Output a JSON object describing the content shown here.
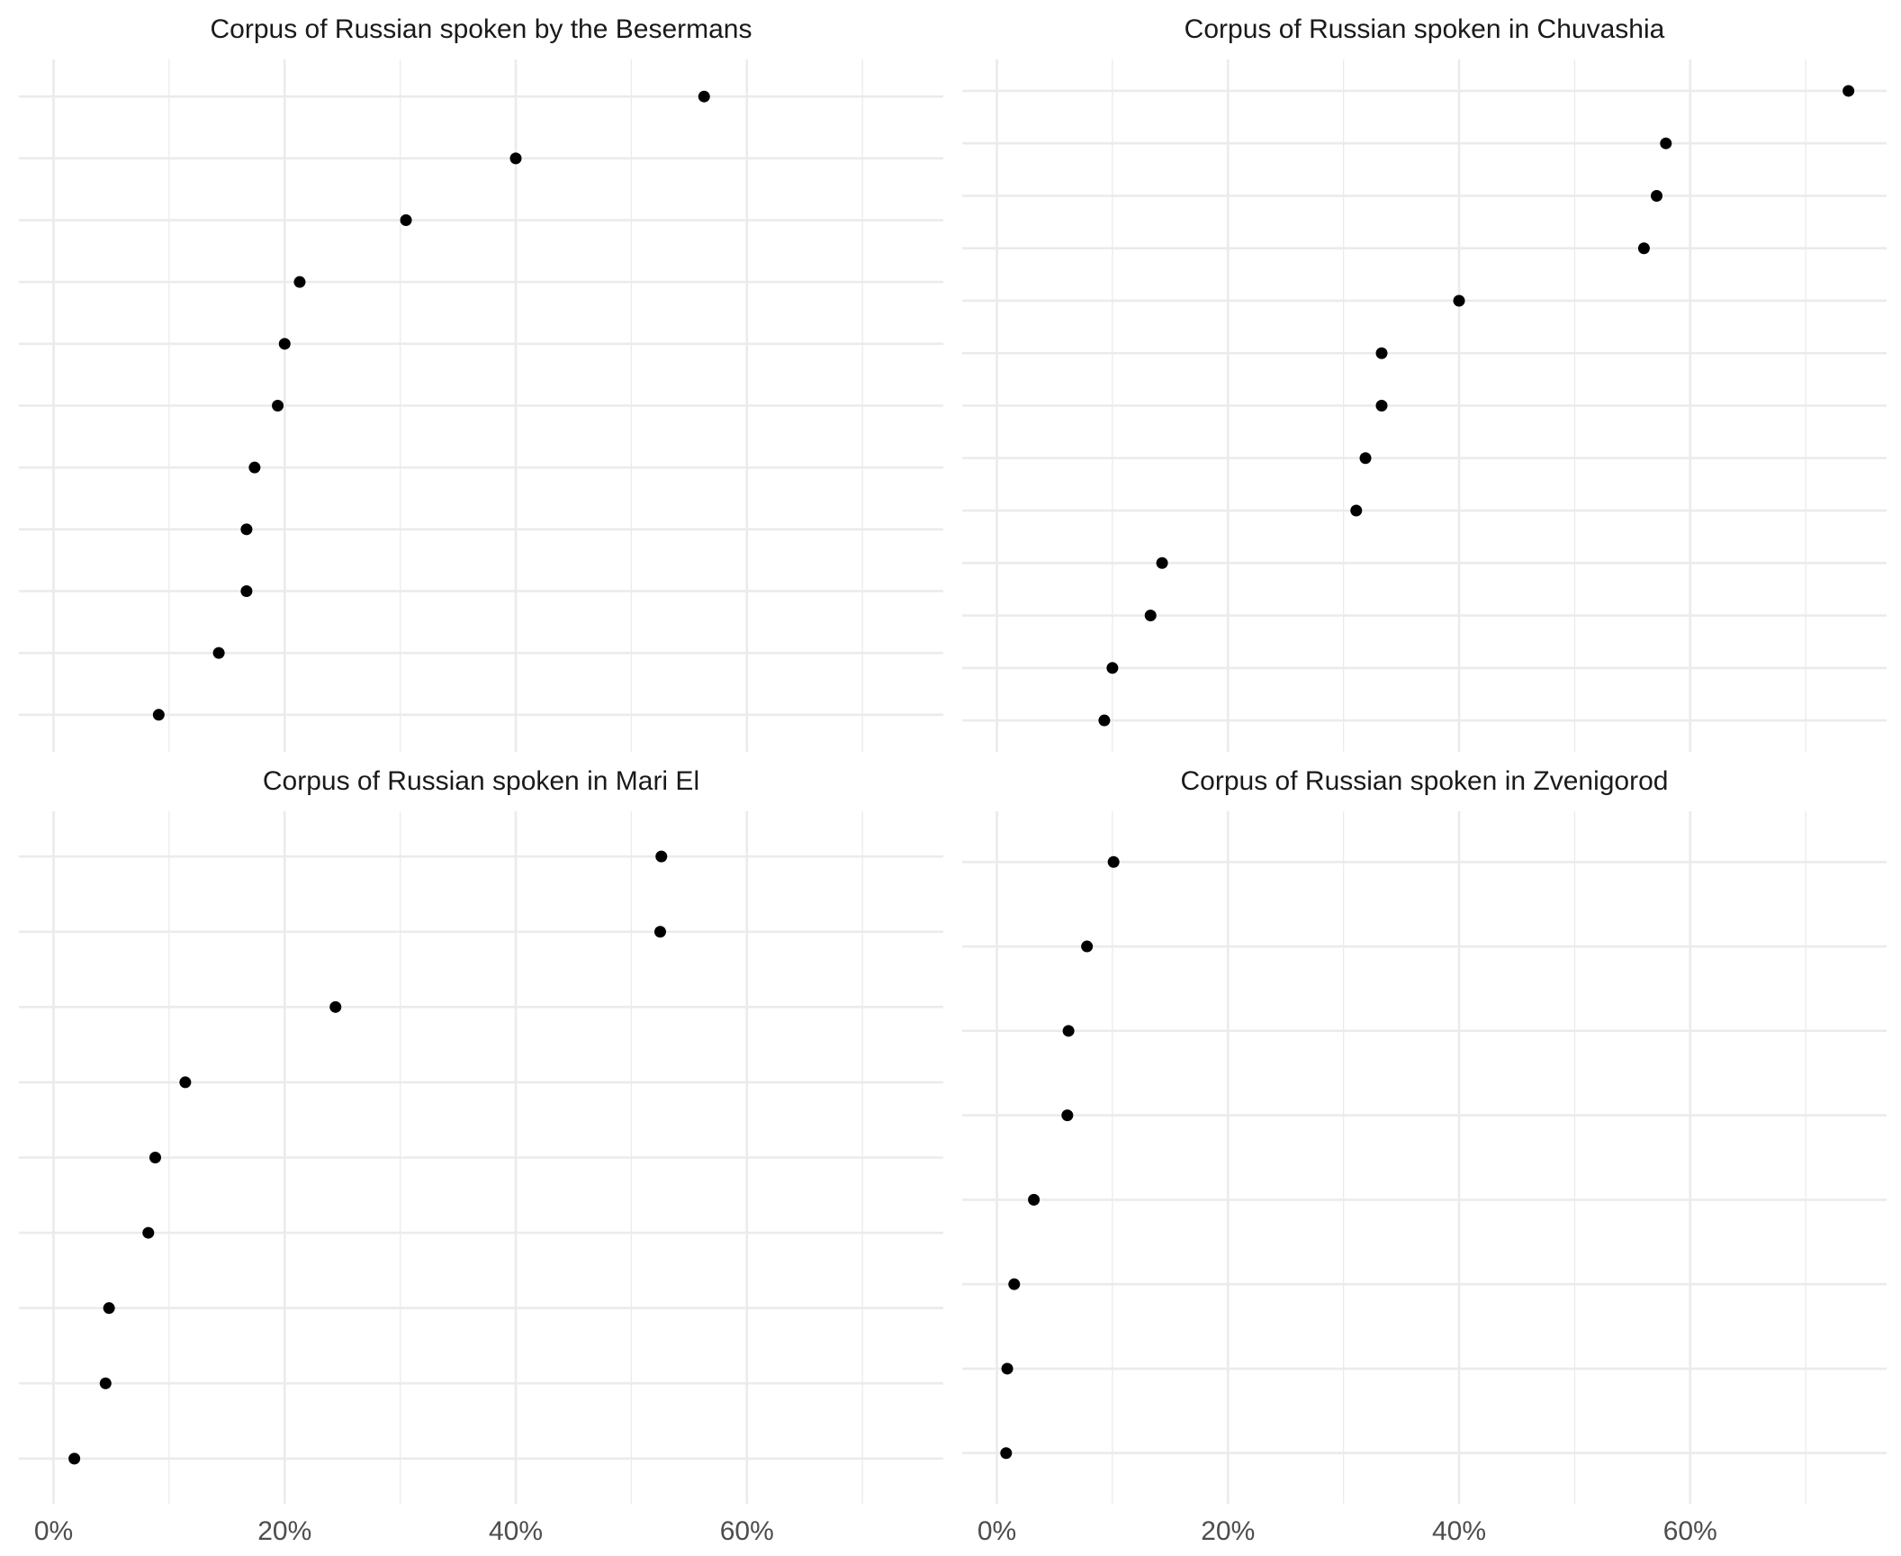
{
  "chart_data": [
    {
      "type": "scatter",
      "title": "Corpus of Russian spoken by the Besermans",
      "values": [
        56.3,
        40.0,
        30.5,
        21.3,
        20.0,
        19.4,
        17.4,
        16.7,
        16.7,
        14.3,
        9.1
      ],
      "xlim": [
        -3,
        77
      ],
      "xticks": [
        0,
        20,
        40,
        60
      ],
      "xtick_labels": [
        "0%",
        "20%",
        "40%",
        "60%"
      ],
      "show_x_tick_labels": false,
      "grid": true
    },
    {
      "type": "scatter",
      "title": "Corpus of Russian spoken in Chuvashia",
      "values": [
        73.7,
        57.9,
        57.1,
        56.0,
        40.0,
        33.3,
        33.3,
        31.9,
        31.1,
        14.3,
        13.3,
        10.0,
        9.3
      ],
      "xlim": [
        -3,
        77
      ],
      "xticks": [
        0,
        20,
        40,
        60
      ],
      "xtick_labels": [
        "0%",
        "20%",
        "40%",
        "60%"
      ],
      "show_x_tick_labels": false,
      "grid": true
    },
    {
      "type": "scatter",
      "title": "Corpus of Russian spoken in Mari El",
      "values": [
        52.6,
        52.5,
        24.4,
        11.4,
        8.8,
        8.2,
        4.8,
        4.5,
        1.8
      ],
      "xlim": [
        -3,
        77
      ],
      "xticks": [
        0,
        20,
        40,
        60
      ],
      "xtick_labels": [
        "0%",
        "20%",
        "40%",
        "60%"
      ],
      "show_x_tick_labels": true,
      "grid": true
    },
    {
      "type": "scatter",
      "title": "Corpus of Russian spoken in Zvenigorod",
      "values": [
        10.1,
        7.8,
        6.2,
        6.1,
        3.2,
        1.5,
        0.9,
        0.8
      ],
      "xlim": [
        -3,
        77
      ],
      "xticks": [
        0,
        20,
        40,
        60
      ],
      "xtick_labels": [
        "0%",
        "20%",
        "40%",
        "60%"
      ],
      "show_x_tick_labels": true,
      "grid": true
    }
  ]
}
